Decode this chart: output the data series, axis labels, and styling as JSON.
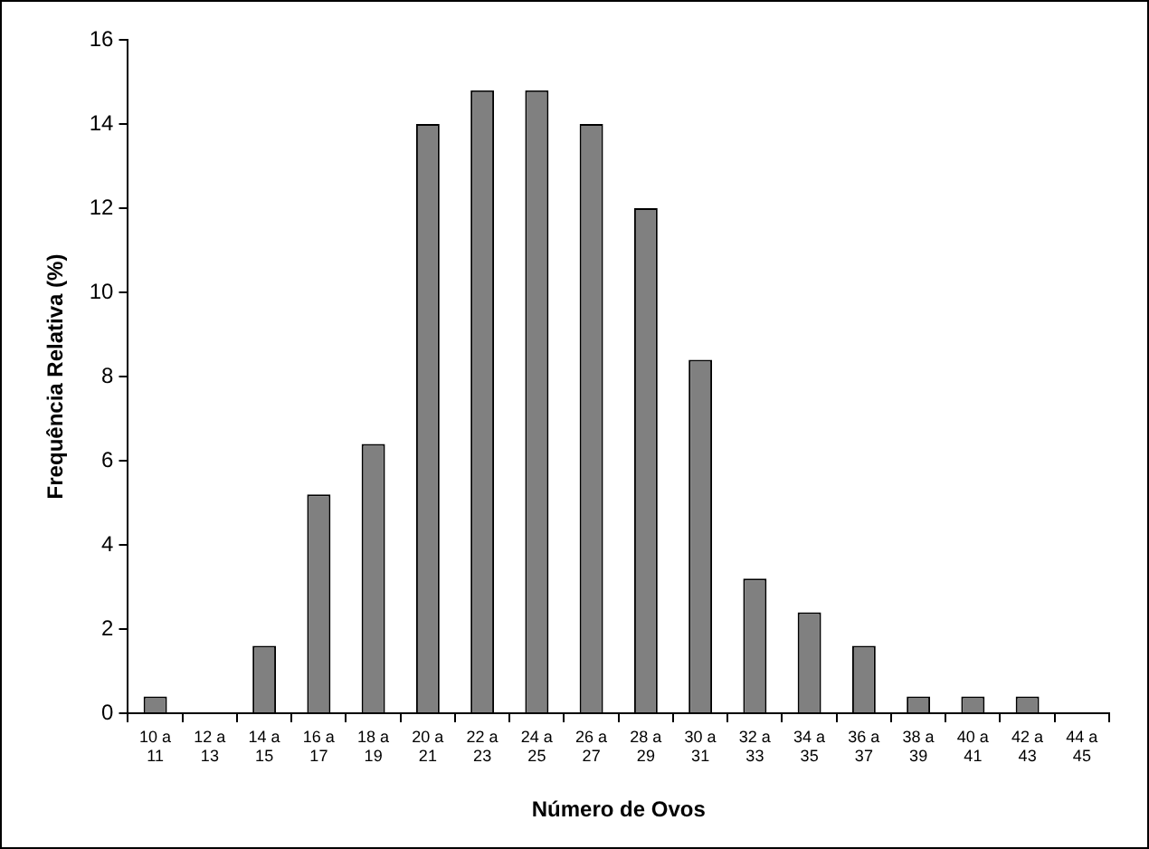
{
  "chart_data": {
    "type": "bar",
    "xlabel": "Número de Ovos",
    "ylabel": "Frequência Relativa (%)",
    "categories": [
      "10 a 11",
      "12 a 13",
      "14 a 15",
      "16 a 17",
      "18 a 19",
      "20 a 21",
      "22 a 23",
      "24 a 25",
      "26 a 27",
      "28 a 29",
      "30 a 31",
      "32 a 33",
      "34 a 35",
      "36 a 37",
      "38 a 39",
      "40 a 41",
      "42 a 43",
      "44 a 45"
    ],
    "values": [
      0.4,
      0,
      1.6,
      5.2,
      6.4,
      14,
      14.8,
      14.8,
      14,
      12,
      8.4,
      3.2,
      2.4,
      1.6,
      0.4,
      0.4,
      0.4,
      0
    ],
    "color": "#808080",
    "ylim": [
      0,
      16
    ],
    "yticks": [
      0,
      2,
      4,
      6,
      8,
      10,
      12,
      14,
      16
    ],
    "grid": false,
    "legend": false
  }
}
